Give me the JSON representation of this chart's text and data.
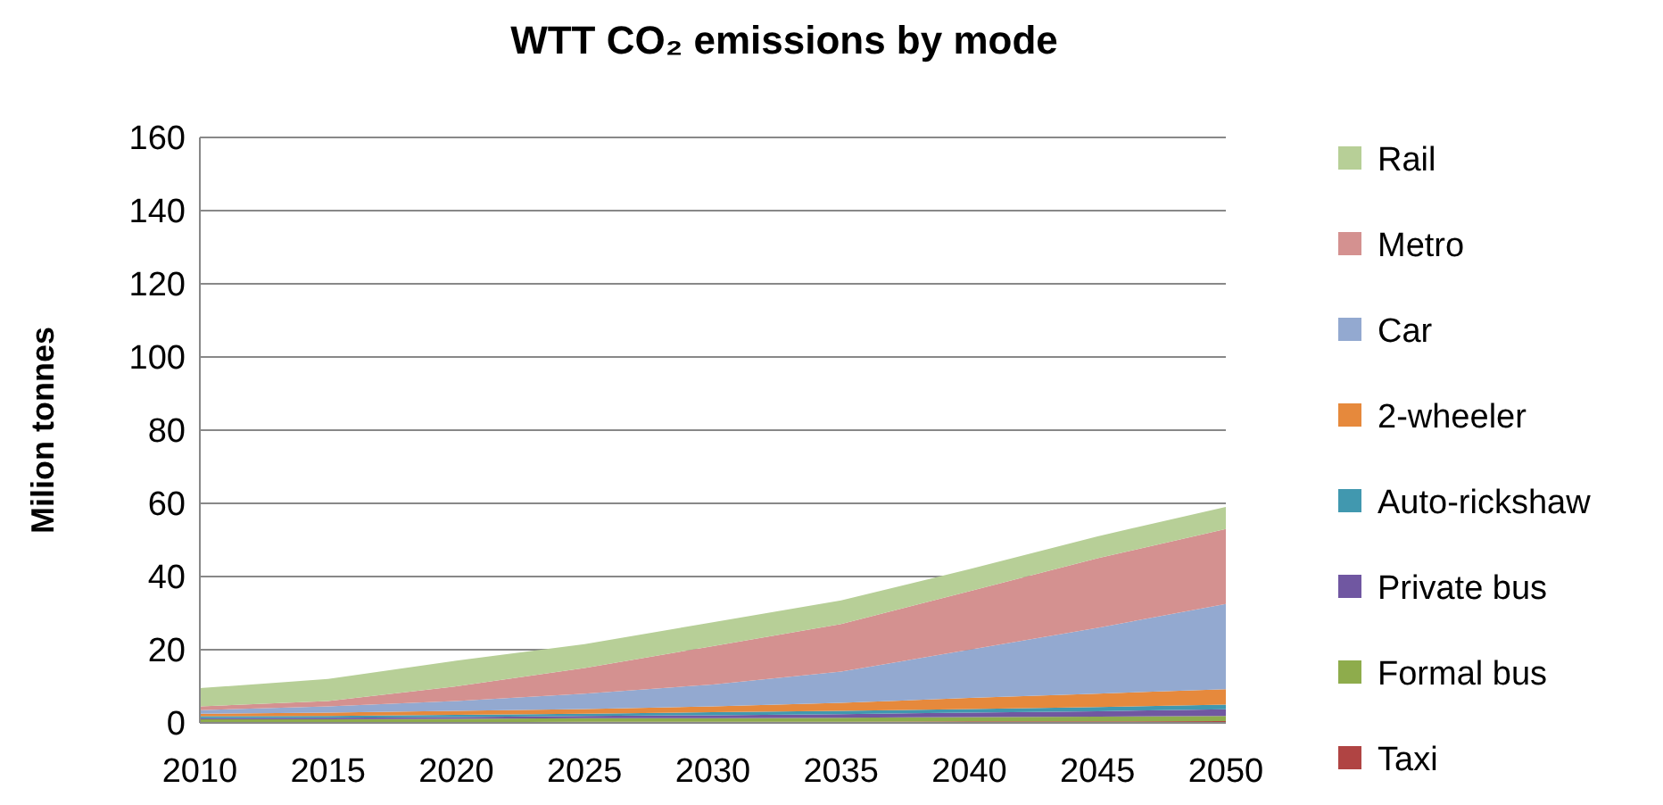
{
  "chart_data": {
    "type": "area",
    "stacked": true,
    "title": "WTT CO₂ emissions by mode",
    "ylabel": "Milion tonnes",
    "x": [
      2010,
      2015,
      2020,
      2025,
      2030,
      2035,
      2040,
      2045,
      2050
    ],
    "xlim": [
      2010,
      2050
    ],
    "xticks": [
      2010,
      2015,
      2020,
      2025,
      2030,
      2035,
      2040,
      2045,
      2050
    ],
    "ylim": [
      0,
      160
    ],
    "yticks": [
      0,
      20,
      40,
      60,
      80,
      100,
      120,
      140,
      160
    ],
    "grid": "y",
    "legend": "right",
    "series": [
      {
        "name": "Taxi",
        "color": "#b04443",
        "values": [
          0.2,
          0.2,
          0.2,
          0.3,
          0.3,
          0.3,
          0.4,
          0.4,
          0.5
        ]
      },
      {
        "name": "Formal bus",
        "color": "#8eac4c",
        "values": [
          0.8,
          0.8,
          0.9,
          1,
          1,
          1.1,
          1.2,
          1.3,
          1.4
        ]
      },
      {
        "name": "Private bus",
        "color": "#7057a1",
        "values": [
          0.3,
          0.4,
          0.5,
          0.6,
          0.8,
          1,
          1.2,
          1.5,
          1.8
        ]
      },
      {
        "name": "Auto-rickshaw",
        "color": "#4198af",
        "values": [
          0.5,
          0.5,
          0.6,
          0.6,
          0.8,
          0.9,
          1,
          1.1,
          1.3
        ]
      },
      {
        "name": "2-wheeler",
        "color": "#e6893c",
        "values": [
          0.7,
          0.9,
          1.1,
          1.3,
          1.6,
          2.2,
          3,
          3.7,
          4.2
        ]
      },
      {
        "name": "Car",
        "color": "#93a9d0",
        "values": [
          1,
          1.7,
          2.7,
          4.2,
          6,
          8.5,
          13.2,
          18,
          23.3
        ]
      },
      {
        "name": "Metro",
        "color": "#d49190",
        "values": [
          1,
          1.5,
          4,
          7,
          10.5,
          13,
          16,
          19,
          20.5
        ]
      },
      {
        "name": "Rail",
        "color": "#b7cf97",
        "values": [
          5,
          6,
          7,
          6.5,
          6.5,
          6.5,
          6,
          6,
          6
        ]
      }
    ]
  }
}
